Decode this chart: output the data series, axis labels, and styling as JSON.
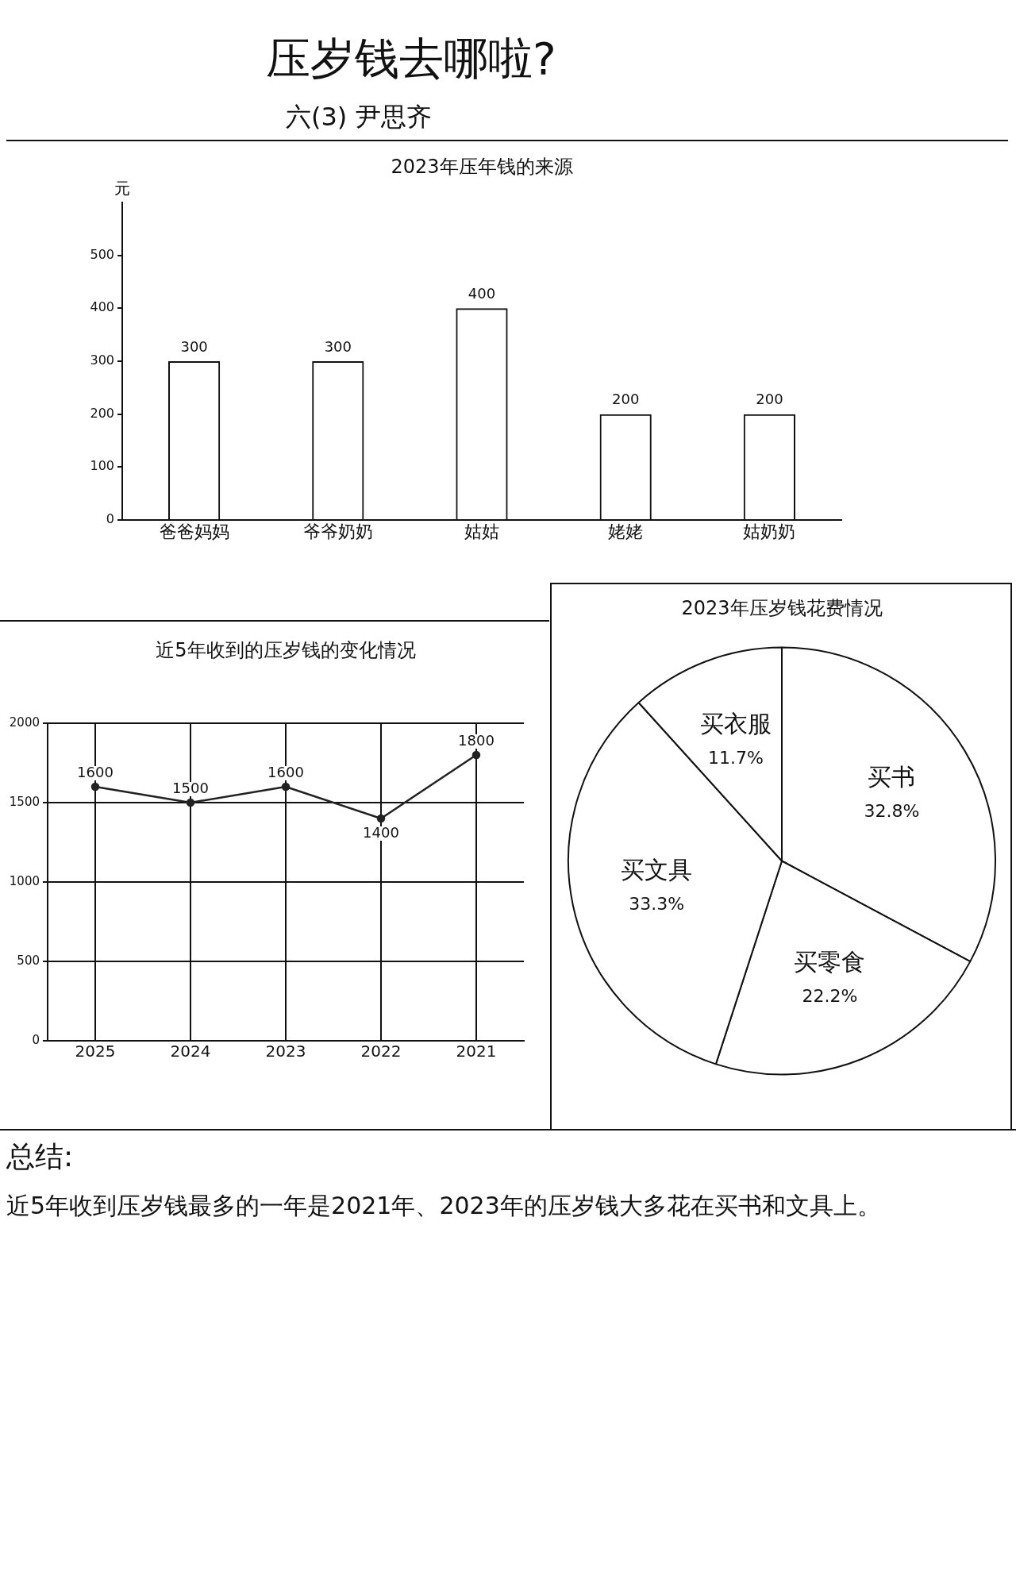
{
  "chart_data": [
    {
      "type": "other",
      "title": "压岁钱去哪啦?",
      "subtitle": "六(3) 尹思齐"
    },
    {
      "type": "bar",
      "title": "2023年压年钱的来源",
      "ylabel": "元",
      "categories": [
        "爸爸妈妈",
        "爷爷奶奶",
        "姑姑",
        "姥姥",
        "姑奶奶"
      ],
      "values": [
        300,
        300,
        400,
        200,
        200
      ],
      "color": "#111111",
      "ylim": [
        0,
        600
      ],
      "yticks": [
        0,
        100,
        200,
        300,
        400,
        500
      ],
      "data_labels": true
    },
    {
      "type": "line",
      "title": "近5年收到的压岁钱的变化情况",
      "categories": [
        "2025",
        "2024",
        "2023",
        "2022",
        "2021"
      ],
      "values": [
        1600,
        1500,
        1600,
        1400,
        1800
      ],
      "color": "#222222",
      "ylim": [
        0,
        2000
      ],
      "yticks": [
        0,
        500,
        1000,
        1500,
        2000
      ],
      "grid": true,
      "marker": "circle",
      "line_style": "solid",
      "data_labels": true
    },
    {
      "type": "pie",
      "title": "2023年压岁钱花费情况",
      "categories": [
        "买书",
        "买零食",
        "买文具",
        "买衣服"
      ],
      "values": [
        32.8,
        22.2,
        33.3,
        11.7
      ],
      "colors": [
        "#ffffff",
        "#ffffff",
        "#ffffff",
        "#ffffff"
      ],
      "value_labels": [
        "32.8%",
        "22.2%",
        "33.3%",
        "11.7%"
      ]
    },
    {
      "type": "other",
      "title": "总结:",
      "annotations": [
        "近5年收到压岁钱最多的一年是2021年、2023年的压岁钱大多花在买书和文具上。"
      ]
    }
  ]
}
